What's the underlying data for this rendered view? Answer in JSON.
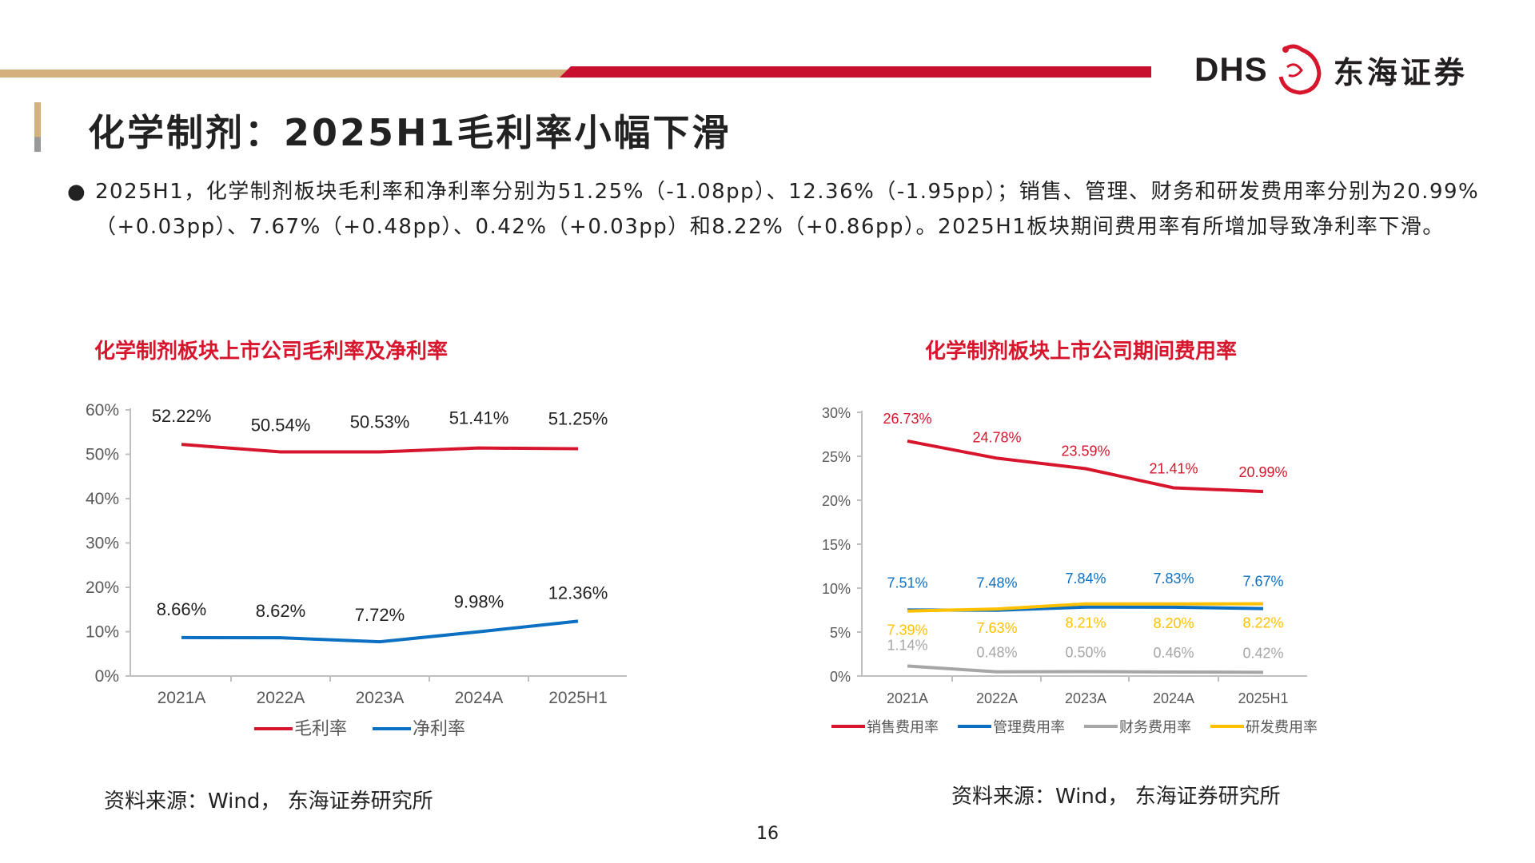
{
  "header": {
    "logo_text": "DHS",
    "logo_cn": "东海证券",
    "colors": {
      "tan": "#d4b07c",
      "red": "#c8102e"
    }
  },
  "title": "化学制剂：2025H1毛利率小幅下滑",
  "bullet": "2025H1，化学制剂板块毛利率和净利率分别为51.25%（-1.08pp）、12.36%（-1.95pp）；销售、管理、财务和研发费用率分别为20.99%（+0.03pp）、7.67%（+0.48pp）、0.42%（+0.03pp）和8.22%（+0.86pp）。2025H1板块期间费用率有所增加导致净利率下滑。",
  "source_left": "资料来源：Wind， 东海证券研究所",
  "source_right": "资料来源：Wind， 东海证券研究所",
  "page_number": "16",
  "chart_data": [
    {
      "type": "line",
      "title": "化学制剂板块上市公司毛利率及净利率",
      "categories": [
        "2021A",
        "2022A",
        "2023A",
        "2024A",
        "2025H1"
      ],
      "ylim": [
        0,
        60
      ],
      "yticks": [
        "0%",
        "10%",
        "20%",
        "30%",
        "40%",
        "50%",
        "60%"
      ],
      "legend": "bottom",
      "series": [
        {
          "name": "毛利率",
          "color": "#d7162d",
          "values": [
            52.22,
            50.54,
            50.53,
            51.41,
            51.25
          ],
          "labels": [
            "52.22%",
            "50.54%",
            "50.53%",
            "51.41%",
            "51.25%"
          ]
        },
        {
          "name": "净利率",
          "color": "#0b6fc2",
          "values": [
            8.66,
            8.62,
            7.72,
            9.98,
            12.36
          ],
          "labels": [
            "8.66%",
            "8.62%",
            "7.72%",
            "9.98%",
            "12.36%"
          ]
        }
      ]
    },
    {
      "type": "line",
      "title": "化学制剂板块上市公司期间费用率",
      "categories": [
        "2021A",
        "2022A",
        "2023A",
        "2024A",
        "2025H1"
      ],
      "ylim": [
        0,
        30
      ],
      "yticks": [
        "0%",
        "5%",
        "10%",
        "15%",
        "20%",
        "25%",
        "30%"
      ],
      "legend": "bottom",
      "series": [
        {
          "name": "销售费用率",
          "color": "#d7162d",
          "values": [
            26.73,
            24.78,
            23.59,
            21.41,
            20.99
          ],
          "labels": [
            "26.73%",
            "24.78%",
            "23.59%",
            "21.41%",
            "20.99%"
          ]
        },
        {
          "name": "管理费用率",
          "color": "#0b6fc2",
          "values": [
            7.51,
            7.48,
            7.84,
            7.83,
            7.67
          ],
          "labels": [
            "7.51%",
            "7.48%",
            "7.84%",
            "7.83%",
            "7.67%"
          ]
        },
        {
          "name": "财务费用率",
          "color": "#a6a6a6",
          "values": [
            1.14,
            0.48,
            0.5,
            0.46,
            0.42
          ],
          "labels": [
            "1.14%",
            "0.48%",
            "0.50%",
            "0.46%",
            "0.42%"
          ]
        },
        {
          "name": "研发费用率",
          "color": "#ffc000",
          "values": [
            7.39,
            7.63,
            8.21,
            8.2,
            8.22
          ],
          "labels": [
            "7.39%",
            "7.63%",
            "8.21%",
            "8.20%",
            "8.22%"
          ]
        }
      ]
    }
  ]
}
